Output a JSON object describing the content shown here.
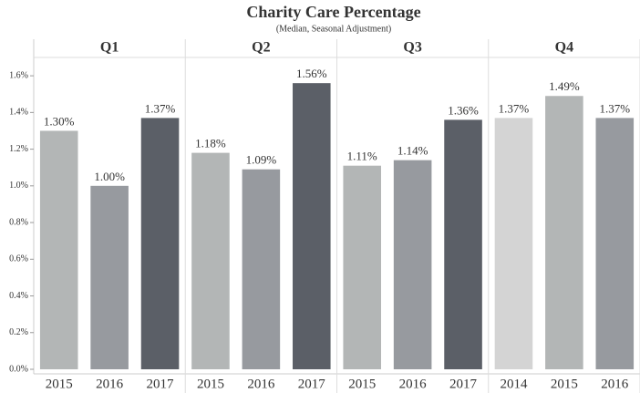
{
  "chart_data": {
    "type": "bar",
    "title": "Charity Care Percentage",
    "subtitle": "(Median, Seasonal Adjustment)",
    "ylim": [
      0,
      1.7
    ],
    "yticks": [
      {
        "value": 0,
        "label": "0.0%"
      },
      {
        "value": 0.2,
        "label": "0.2%"
      },
      {
        "value": 0.4,
        "label": "0.4%"
      },
      {
        "value": 0.6,
        "label": "0.6%"
      },
      {
        "value": 0.8,
        "label": "0.8%"
      },
      {
        "value": 1.0,
        "label": "1.0%"
      },
      {
        "value": 1.2,
        "label": "1.2%"
      },
      {
        "value": 1.4,
        "label": "1.4%"
      },
      {
        "value": 1.6,
        "label": "1.6%"
      }
    ],
    "grid": false,
    "panels": [
      {
        "name": "Q1",
        "categories": [
          "2015",
          "2016",
          "2017"
        ],
        "values": [
          1.3,
          1.0,
          1.37
        ],
        "value_labels": [
          "1.30%",
          "1.00%",
          "1.37%"
        ],
        "colors": [
          "#b3b6b6",
          "#979a9f",
          "#5b5f67"
        ]
      },
      {
        "name": "Q2",
        "categories": [
          "2015",
          "2016",
          "2017"
        ],
        "values": [
          1.18,
          1.09,
          1.56
        ],
        "value_labels": [
          "1.18%",
          "1.09%",
          "1.56%"
        ],
        "colors": [
          "#b3b6b6",
          "#979a9f",
          "#5b5f67"
        ]
      },
      {
        "name": "Q3",
        "categories": [
          "2015",
          "2016",
          "2017"
        ],
        "values": [
          1.11,
          1.14,
          1.36
        ],
        "value_labels": [
          "1.11%",
          "1.14%",
          "1.36%"
        ],
        "colors": [
          "#b3b6b6",
          "#979a9f",
          "#5b5f67"
        ]
      },
      {
        "name": "Q4",
        "categories": [
          "2014",
          "2015",
          "2016"
        ],
        "values": [
          1.37,
          1.49,
          1.37
        ],
        "value_labels": [
          "1.37%",
          "1.49%",
          "1.37%"
        ],
        "colors": [
          "#d4d4d4",
          "#b3b6b6",
          "#979a9f"
        ]
      }
    ]
  }
}
